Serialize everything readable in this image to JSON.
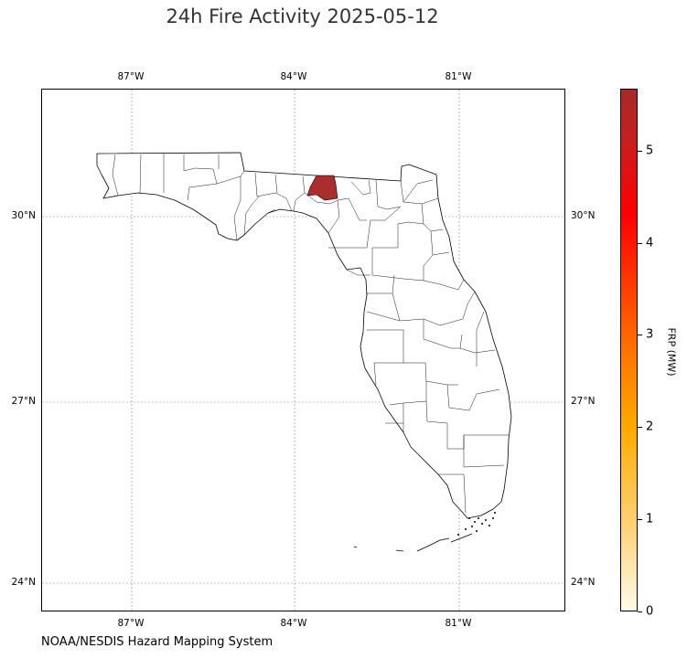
{
  "title": "24h Fire Activity 2025-05-12",
  "source": "NOAA/NESDIS Hazard Mapping System",
  "lon_labels": [
    "87°W",
    "84°W",
    "81°W"
  ],
  "lat_labels": [
    "30°N",
    "27°N",
    "24°N"
  ],
  "colorbar": {
    "label": "FRP (MW)",
    "ticks": [
      "0",
      "1",
      "2",
      "3",
      "4",
      "5"
    ],
    "max": 5.6,
    "colors": [
      "#fffbea",
      "#ffab00",
      "#ff0000",
      "#a52a2a"
    ]
  },
  "region": "Florida",
  "fire_county": {
    "frp_mw": 5.6,
    "color": "#ab2e2e"
  }
}
